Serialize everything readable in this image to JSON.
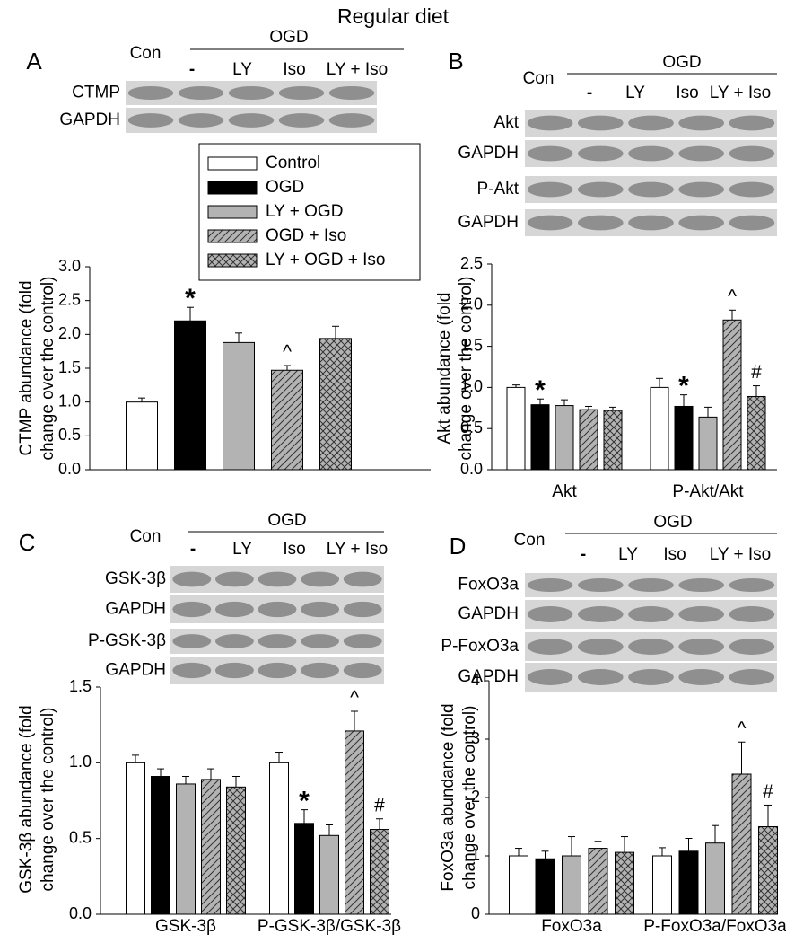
{
  "title": "Regular diet",
  "chart_data": [
    {
      "type": "bar",
      "panel": "A",
      "blot": {
        "control_lane": "Con",
        "group": "OGD",
        "lanes": [
          "-",
          "LY",
          "Iso",
          "LY + Iso"
        ],
        "rows": [
          "CTMP",
          "GAPDH"
        ]
      },
      "ylabel": [
        "CTMP abundance (fold",
        "change over the control)"
      ],
      "categories": [
        null
      ],
      "ylim": [
        0,
        3
      ],
      "yticks": [
        {
          "value": 0,
          "label": "0.0"
        },
        0.5,
        {
          "value": 1,
          "label": "1.0"
        },
        1.5,
        {
          "value": 2,
          "label": "2.0"
        },
        2.5,
        {
          "value": 3,
          "label": "3.0"
        }
      ],
      "legend": true,
      "series": [
        {
          "name": "Control",
          "color": "#ffffff",
          "pattern": "none",
          "values": [
            1.0
          ],
          "errors": [
            0.06
          ],
          "markers": [
            null
          ]
        },
        {
          "name": "OGD",
          "color": "#000000",
          "pattern": "none",
          "values": [
            2.2
          ],
          "errors": [
            0.2
          ],
          "markers": [
            "*"
          ]
        },
        {
          "name": "LY + OGD",
          "color": "#b3b3b3",
          "pattern": "none",
          "values": [
            1.88
          ],
          "errors": [
            0.14
          ],
          "markers": [
            null
          ]
        },
        {
          "name": "OGD + Iso",
          "color": "#b3b3b3",
          "pattern": "diagonal",
          "values": [
            1.47
          ],
          "errors": [
            0.07
          ],
          "markers": [
            "^"
          ]
        },
        {
          "name": "LY + OGD + Iso",
          "color": "#b3b3b3",
          "pattern": "cross",
          "values": [
            1.94
          ],
          "errors": [
            0.18
          ],
          "markers": [
            null
          ]
        }
      ]
    },
    {
      "type": "bar",
      "panel": "B",
      "blot": {
        "control_lane": "Con",
        "group": "OGD",
        "lanes": [
          "-",
          "LY",
          "Iso",
          "LY + Iso"
        ],
        "rows": [
          "Akt",
          "GAPDH",
          "P-Akt",
          "GAPDH"
        ]
      },
      "ylabel": [
        "Akt abundance (fold",
        "change over the control)"
      ],
      "categories": [
        "Akt",
        "P-Akt/Akt"
      ],
      "ylim": [
        0,
        2.5
      ],
      "yticks": [
        {
          "value": 0,
          "label": "0.0"
        },
        0.5,
        {
          "value": 1,
          "label": "1.0"
        },
        1.5,
        {
          "value": 2,
          "label": "2.0"
        },
        2.5
      ],
      "legend": false,
      "series": [
        {
          "color": "#ffffff",
          "pattern": "none",
          "values": [
            1.0,
            1.0
          ],
          "errors": [
            0.03,
            0.11
          ],
          "markers": [
            null,
            null
          ]
        },
        {
          "color": "#000000",
          "pattern": "none",
          "values": [
            0.79,
            0.77
          ],
          "errors": [
            0.07,
            0.14
          ],
          "markers": [
            "*",
            "*"
          ]
        },
        {
          "color": "#b3b3b3",
          "pattern": "none",
          "values": [
            0.78,
            0.64
          ],
          "errors": [
            0.07,
            0.12
          ],
          "markers": [
            null,
            null
          ]
        },
        {
          "color": "#b3b3b3",
          "pattern": "diagonal",
          "values": [
            0.73,
            1.82
          ],
          "errors": [
            0.04,
            0.12
          ],
          "markers": [
            null,
            "^"
          ]
        },
        {
          "color": "#b3b3b3",
          "pattern": "cross",
          "values": [
            0.72,
            0.89
          ],
          "errors": [
            0.04,
            0.13
          ],
          "markers": [
            null,
            "#"
          ]
        }
      ]
    },
    {
      "type": "bar",
      "panel": "C",
      "blot": {
        "control_lane": "Con",
        "group": "OGD",
        "lanes": [
          "-",
          "LY",
          "Iso",
          "LY + Iso"
        ],
        "rows": [
          "GSK-3β",
          "GAPDH",
          "P-GSK-3β",
          "GAPDH"
        ]
      },
      "ylabel": [
        "GSK-3β abundance (fold",
        "change over the control)"
      ],
      "categories": [
        "GSK-3β",
        "P-GSK-3β/GSK-3β"
      ],
      "ylim": [
        0,
        1.5
      ],
      "yticks": [
        {
          "value": 0,
          "label": "0.0"
        },
        0.5,
        {
          "value": 1,
          "label": "1.0"
        },
        1.5
      ],
      "legend": false,
      "series": [
        {
          "color": "#ffffff",
          "pattern": "none",
          "values": [
            1.0,
            1.0
          ],
          "errors": [
            0.05,
            0.07
          ],
          "markers": [
            null,
            null
          ]
        },
        {
          "color": "#000000",
          "pattern": "none",
          "values": [
            0.91,
            0.6
          ],
          "errors": [
            0.05,
            0.09
          ],
          "markers": [
            null,
            "*"
          ]
        },
        {
          "color": "#b3b3b3",
          "pattern": "none",
          "values": [
            0.86,
            0.52
          ],
          "errors": [
            0.05,
            0.07
          ],
          "markers": [
            null,
            null
          ]
        },
        {
          "color": "#b3b3b3",
          "pattern": "diagonal",
          "values": [
            0.89,
            1.21
          ],
          "errors": [
            0.07,
            0.13
          ],
          "markers": [
            null,
            "^"
          ]
        },
        {
          "color": "#b3b3b3",
          "pattern": "cross",
          "values": [
            0.84,
            0.56
          ],
          "errors": [
            0.07,
            0.07
          ],
          "markers": [
            null,
            "#"
          ]
        }
      ]
    },
    {
      "type": "bar",
      "panel": "D",
      "blot": {
        "control_lane": "Con",
        "group": "OGD",
        "lanes": [
          "-",
          "LY",
          "Iso",
          "LY + Iso"
        ],
        "rows": [
          "FoxO3a",
          "GAPDH",
          "P-FoxO3a",
          "GAPDH"
        ]
      },
      "ylabel": [
        "FoxO3a abundance (fold",
        "change over the control)"
      ],
      "categories": [
        "FoxO3a",
        "P-FoxO3a/FoxO3a"
      ],
      "ylim": [
        0,
        4
      ],
      "yticks": [
        0,
        1,
        2,
        3,
        4
      ],
      "legend": false,
      "series": [
        {
          "color": "#ffffff",
          "pattern": "none",
          "values": [
            1.0,
            1.0
          ],
          "errors": [
            0.13,
            0.14
          ],
          "markers": [
            null,
            null
          ]
        },
        {
          "color": "#000000",
          "pattern": "none",
          "values": [
            0.95,
            1.08
          ],
          "errors": [
            0.13,
            0.22
          ],
          "markers": [
            null,
            null
          ]
        },
        {
          "color": "#b3b3b3",
          "pattern": "none",
          "values": [
            1.0,
            1.22
          ],
          "errors": [
            0.33,
            0.3
          ],
          "markers": [
            null,
            null
          ]
        },
        {
          "color": "#b3b3b3",
          "pattern": "diagonal",
          "values": [
            1.13,
            2.4
          ],
          "errors": [
            0.12,
            0.55
          ],
          "markers": [
            null,
            "^"
          ]
        },
        {
          "color": "#b3b3b3",
          "pattern": "cross",
          "values": [
            1.06,
            1.5
          ],
          "errors": [
            0.27,
            0.37
          ],
          "markers": [
            null,
            "#"
          ]
        }
      ]
    }
  ]
}
